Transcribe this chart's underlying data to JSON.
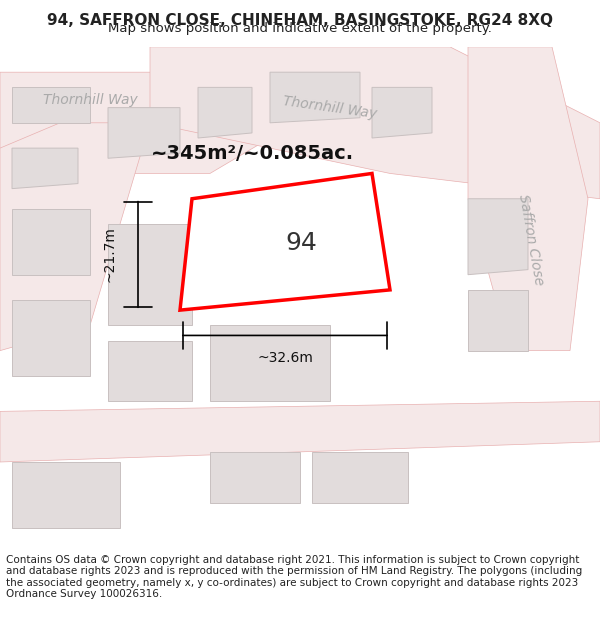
{
  "title": "94, SAFFRON CLOSE, CHINEHAM, BASINGSTOKE, RG24 8XQ",
  "subtitle": "Map shows position and indicative extent of the property.",
  "footer": "Contains OS data © Crown copyright and database right 2021. This information is subject to Crown copyright and database rights 2023 and is reproduced with the permission of HM Land Registry. The polygons (including the associated geometry, namely x, y co-ordinates) are subject to Crown copyright and database rights 2023 Ordnance Survey 100026316.",
  "map_bg": "#f7f2f2",
  "title_bg": "#ffffff",
  "footer_bg": "#ffffff",
  "road_fill": "#f5e8e8",
  "road_edge": "#e8b0b0",
  "block_color": "#e2dcdc",
  "block_outline": "#c8c0c0",
  "highlight_plot_color": "#ff0000",
  "highlight_plot_fill": "#ffffff",
  "area_label": "~345m²/~0.085ac.",
  "number_label": "94",
  "width_label": "~32.6m",
  "height_label": "~21.7m",
  "road_label_1": "Thornhill Way",
  "road_label_2": "Thornhill Way",
  "road_label_3": "Saffron Close",
  "title_fontsize": 11,
  "subtitle_fontsize": 9.5,
  "footer_fontsize": 7.5,
  "road_label_fontsize": 10,
  "area_label_fontsize": 14,
  "number_label_fontsize": 18,
  "measure_label_fontsize": 10
}
